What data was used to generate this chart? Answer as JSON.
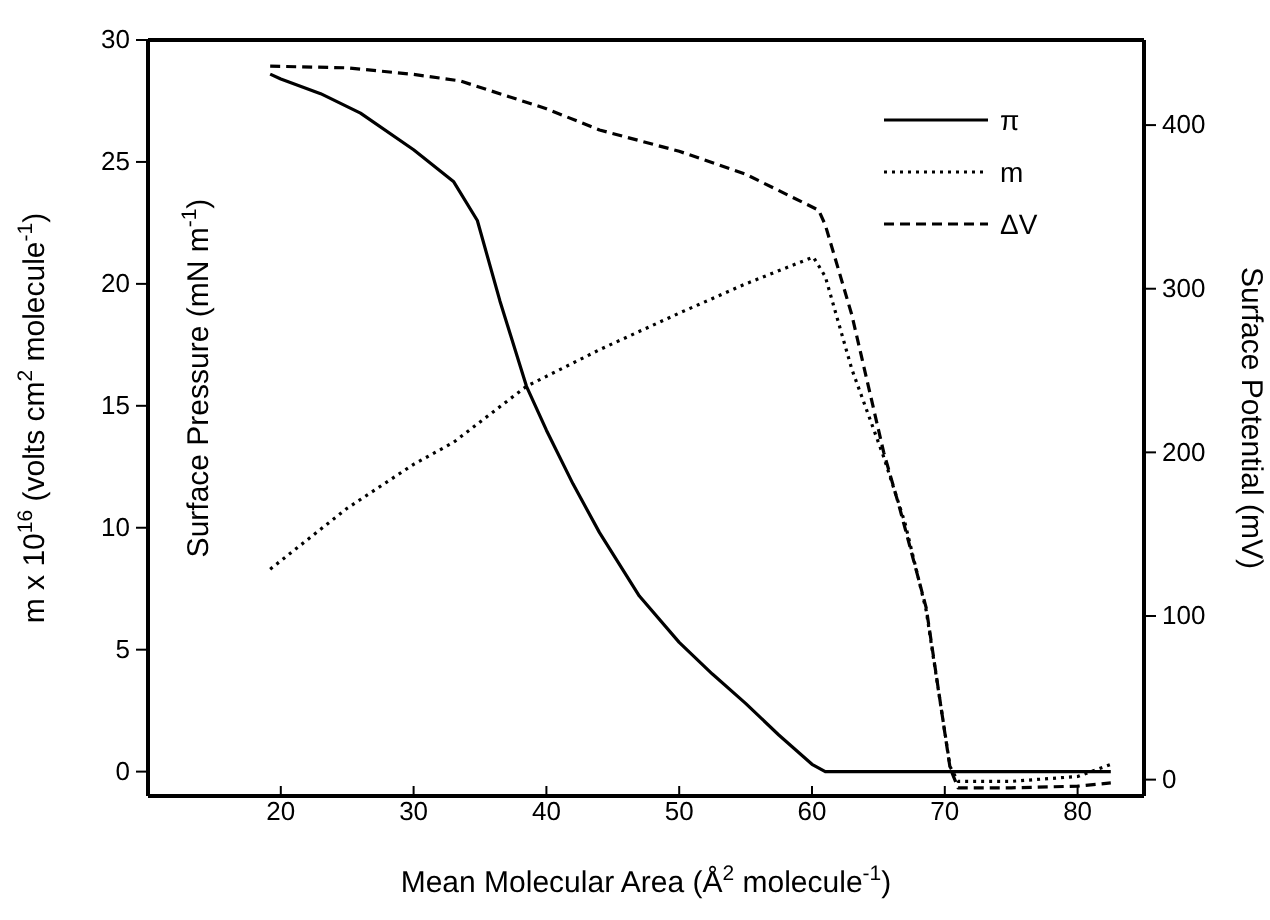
{
  "chart_data": {
    "type": "line",
    "xlabel": "Mean Molecular Area (Å$^{2}$ molecule$^{-1}$)",
    "ylabel": "m x 10$^{16}$ (volts cm$^{2}$ molecule$^{-1}$)",
    "y2label": "Surface Potential (mV)",
    "annotations": [
      "Surface Pressure (mN m$^{-1}$)"
    ],
    "xlim": [
      10,
      85
    ],
    "xticks": [
      20,
      30,
      40,
      50,
      60,
      70,
      80
    ],
    "ylim": [
      -1,
      30
    ],
    "yticks": [
      0,
      5,
      10,
      15,
      20,
      25,
      30
    ],
    "y2lim": [
      -10,
      452
    ],
    "y2ticks": [
      0,
      100,
      200,
      300,
      400
    ],
    "grid": false,
    "legend": "top right",
    "marker": "none",
    "series": [
      {
        "name": "π",
        "color": "#000000",
        "line_style": "solid",
        "x": [
          19.2,
          20,
          23,
          26,
          30,
          33,
          34.8,
          36.5,
          38.5,
          40,
          42,
          44,
          47,
          50,
          52.5,
          55,
          57.5,
          60,
          61,
          65,
          70,
          75,
          80,
          82.5
        ],
        "values": [
          28.6,
          28.4,
          27.8,
          27.0,
          25.5,
          24.2,
          22.6,
          19.3,
          15.8,
          14.0,
          11.8,
          9.8,
          7.2,
          5.3,
          4.0,
          2.8,
          1.5,
          0.3,
          0,
          0,
          0,
          0,
          0,
          0
        ]
      },
      {
        "name": "m",
        "color": "#000000",
        "line_style": "dotted",
        "axis": "y",
        "x": [
          19.2,
          25,
          30,
          33,
          38.5,
          44,
          50,
          55,
          60.1,
          61,
          63,
          65.4,
          67,
          68.6,
          70.4,
          71,
          75,
          80,
          82.5
        ],
        "values": [
          8.3,
          10.8,
          12.6,
          13.5,
          15.8,
          17.3,
          18.8,
          20.0,
          21.1,
          20.3,
          16.5,
          12.9,
          10.2,
          6.6,
          0.2,
          -0.4,
          -0.4,
          -0.2,
          0.3
        ]
      },
      {
        "name": "ΔV",
        "color": "#000000",
        "line_style": "dashed",
        "axis": "y2",
        "x": [
          19.2,
          25,
          30,
          33.5,
          40,
          44,
          50,
          55,
          60.5,
          61,
          63,
          65.4,
          66.6,
          68.6,
          70.4,
          71,
          75,
          80,
          82.5
        ],
        "values": [
          436,
          435,
          431,
          427,
          410,
          397,
          384,
          370,
          348,
          339,
          284,
          200,
          166,
          105,
          7,
          -5,
          -5,
          -4,
          -2
        ]
      }
    ]
  }
}
